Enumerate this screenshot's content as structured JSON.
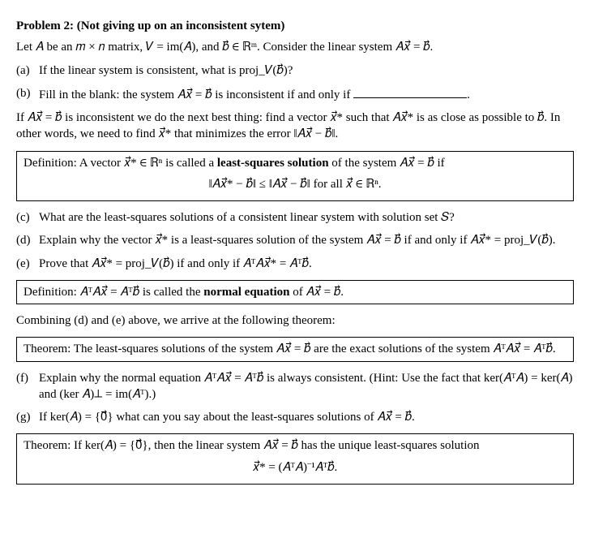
{
  "header": {
    "label": "Problem 2:",
    "title": "(Not giving up on an inconsistent sytem)"
  },
  "intro": "Let 𝐴 be an 𝑚 × 𝑛 matrix, 𝑉 = im(𝐴), and 𝑏⃗ ∈ ℝᵐ. Consider the linear system 𝐴𝑥⃗ = 𝑏⃗.",
  "parts": {
    "a": {
      "label": "(a)",
      "text": "If the linear system is consistent, what is proj_𝑉(𝑏⃗)?"
    },
    "b": {
      "label": "(b)",
      "text_pre": "Fill in the blank: the system 𝐴𝑥⃗ = 𝑏⃗ is inconsistent if and only if ",
      "text_post": ".",
      "follow": "If 𝐴𝑥⃗ = 𝑏⃗ is inconsistent we do the next best thing: find a vector 𝑥⃗* such that 𝐴𝑥⃗* is as close as possible to 𝑏⃗. In other words, we need to find 𝑥⃗* that minimizes the error ‖𝐴𝑥⃗ − 𝑏⃗‖."
    },
    "c": {
      "label": "(c)",
      "text": "What are the least-squares solutions of a consistent linear system with solution set 𝑆?"
    },
    "d": {
      "label": "(d)",
      "text": "Explain why the vector 𝑥⃗* is a least-squares solution of the system 𝐴𝑥⃗ = 𝑏⃗ if and only if 𝐴𝑥⃗* = proj_𝑉(𝑏⃗)."
    },
    "e": {
      "label": "(e)",
      "text": "Prove that 𝐴𝑥⃗* = proj_𝑉(𝑏⃗) if and only if 𝐴ᵀ𝐴𝑥⃗* = 𝐴ᵀ𝑏⃗."
    },
    "f": {
      "label": "(f)",
      "text": "Explain why the normal equation 𝐴ᵀ𝐴𝑥⃗ = 𝐴ᵀ𝑏⃗ is always consistent. (Hint: Use the fact that ker(𝐴ᵀ𝐴) = ker(𝐴) and (ker 𝐴)⊥ = im(𝐴ᵀ).)"
    },
    "g": {
      "label": "(g)",
      "text": "If ker(𝐴) = {0⃗} what can you say about the least-squares solutions of 𝐴𝑥⃗ = 𝑏⃗."
    }
  },
  "def1": {
    "lead": "Definition: A vector 𝑥⃗* ∈ ℝⁿ is called a ",
    "term": "least-squares solution",
    "tail": " of the system 𝐴𝑥⃗ = 𝑏⃗ if",
    "eqn": "‖𝐴𝑥⃗* − 𝑏⃗‖ ≤ ‖𝐴𝑥⃗ − 𝑏⃗‖    for all 𝑥⃗ ∈ ℝⁿ."
  },
  "def2": {
    "lead": "Definition: 𝐴ᵀ𝐴𝑥⃗ = 𝐴ᵀ𝑏⃗ is called the ",
    "term": "normal equation",
    "tail": "  of 𝐴𝑥⃗ = 𝑏⃗."
  },
  "combine": "Combining (d) and (e) above, we arrive at the following theorem:",
  "thm1": "Theorem: The least-squares solutions of the system 𝐴𝑥⃗ = 𝑏⃗ are the exact solutions of the system 𝐴ᵀ𝐴𝑥⃗ = 𝐴ᵀ𝑏⃗.",
  "thm2": {
    "text": "Theorem: If ker(𝐴) = {0⃗}, then the linear system 𝐴𝑥⃗ = 𝑏⃗ has the unique least-squares solution",
    "eqn": "𝑥⃗* = (𝐴ᵀ𝐴)⁻¹𝐴ᵀ𝑏⃗."
  }
}
